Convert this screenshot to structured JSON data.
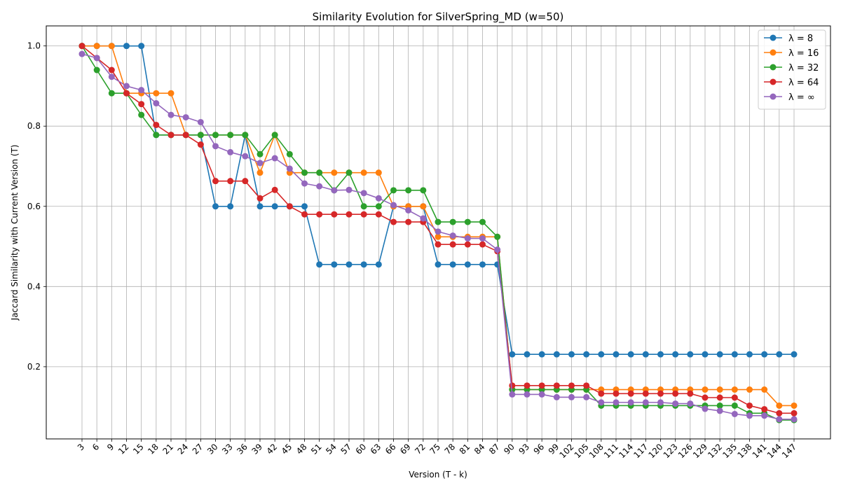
{
  "chart_data": {
    "type": "line",
    "title": "Similarity Evolution for SilverSpring_MD (w=50)",
    "xlabel": "Version (T - k)",
    "ylabel": "Jaccard Similarity with Current Version (T)",
    "x": [
      3,
      6,
      9,
      12,
      15,
      18,
      21,
      24,
      27,
      30,
      33,
      36,
      39,
      42,
      45,
      48,
      51,
      54,
      57,
      60,
      63,
      66,
      69,
      72,
      75,
      78,
      81,
      84,
      87,
      90,
      93,
      96,
      99,
      102,
      105,
      108,
      111,
      114,
      117,
      120,
      123,
      126,
      129,
      132,
      135,
      138,
      141,
      144,
      147
    ],
    "ylim": [
      0.02,
      1.05
    ],
    "yticks": [
      0.2,
      0.4,
      0.6,
      0.8,
      1.0
    ],
    "ytick_labels": [
      "0.2",
      "0.4",
      "0.6",
      "0.8",
      "1.0"
    ],
    "grid": true,
    "legend_position": "top-right",
    "series": [
      {
        "name": "λ = 8",
        "color": "#1f77b4",
        "values": [
          1.0,
          1.0,
          1.0,
          1.0,
          1.0,
          0.778,
          0.778,
          0.778,
          0.778,
          0.6,
          0.6,
          0.778,
          0.6,
          0.6,
          0.6,
          0.6,
          0.455,
          0.455,
          0.455,
          0.455,
          0.455,
          0.6,
          0.6,
          0.6,
          0.455,
          0.455,
          0.455,
          0.455,
          0.455,
          0.231,
          0.231,
          0.231,
          0.231,
          0.231,
          0.231,
          0.231,
          0.231,
          0.231,
          0.231,
          0.231,
          0.231,
          0.231,
          0.231,
          0.231,
          0.231,
          0.231,
          0.231,
          0.231,
          0.231
        ]
      },
      {
        "name": "λ = 16",
        "color": "#ff7f0e",
        "values": [
          1.0,
          1.0,
          1.0,
          0.882,
          0.882,
          0.882,
          0.882,
          0.778,
          0.778,
          0.778,
          0.778,
          0.778,
          0.684,
          0.778,
          0.684,
          0.684,
          0.684,
          0.684,
          0.684,
          0.684,
          0.684,
          0.6,
          0.6,
          0.6,
          0.524,
          0.524,
          0.524,
          0.524,
          0.524,
          0.143,
          0.143,
          0.143,
          0.143,
          0.143,
          0.143,
          0.143,
          0.143,
          0.143,
          0.143,
          0.143,
          0.143,
          0.143,
          0.143,
          0.143,
          0.143,
          0.143,
          0.143,
          0.103,
          0.103
        ]
      },
      {
        "name": "λ = 32",
        "color": "#2ca02c",
        "values": [
          1.0,
          0.94,
          0.882,
          0.882,
          0.828,
          0.778,
          0.778,
          0.778,
          0.778,
          0.778,
          0.778,
          0.778,
          0.73,
          0.778,
          0.73,
          0.684,
          0.684,
          0.64,
          0.684,
          0.6,
          0.6,
          0.64,
          0.64,
          0.64,
          0.561,
          0.561,
          0.561,
          0.561,
          0.524,
          0.143,
          0.143,
          0.143,
          0.143,
          0.143,
          0.143,
          0.103,
          0.103,
          0.103,
          0.103,
          0.103,
          0.103,
          0.103,
          0.103,
          0.103,
          0.103,
          0.084,
          0.084,
          0.067,
          0.067
        ]
      },
      {
        "name": "λ = 64",
        "color": "#d62728",
        "values": [
          1.0,
          0.97,
          0.94,
          0.882,
          0.855,
          0.803,
          0.778,
          0.778,
          0.754,
          0.663,
          0.663,
          0.663,
          0.62,
          0.641,
          0.6,
          0.58,
          0.58,
          0.58,
          0.58,
          0.58,
          0.58,
          0.561,
          0.561,
          0.561,
          0.505,
          0.505,
          0.505,
          0.505,
          0.488,
          0.153,
          0.153,
          0.153,
          0.153,
          0.153,
          0.153,
          0.133,
          0.133,
          0.133,
          0.133,
          0.133,
          0.133,
          0.133,
          0.123,
          0.123,
          0.123,
          0.103,
          0.094,
          0.084,
          0.084
        ]
      },
      {
        "name": "λ = ∞",
        "color": "#9467bd",
        "values": [
          0.98,
          0.97,
          0.923,
          0.9,
          0.89,
          0.857,
          0.828,
          0.822,
          0.81,
          0.75,
          0.735,
          0.725,
          0.708,
          0.72,
          0.694,
          0.657,
          0.65,
          0.64,
          0.641,
          0.633,
          0.62,
          0.603,
          0.59,
          0.57,
          0.537,
          0.527,
          0.52,
          0.52,
          0.492,
          0.131,
          0.131,
          0.131,
          0.124,
          0.124,
          0.124,
          0.111,
          0.111,
          0.111,
          0.111,
          0.111,
          0.108,
          0.108,
          0.095,
          0.09,
          0.082,
          0.078,
          0.078,
          0.069,
          0.069
        ]
      }
    ]
  }
}
